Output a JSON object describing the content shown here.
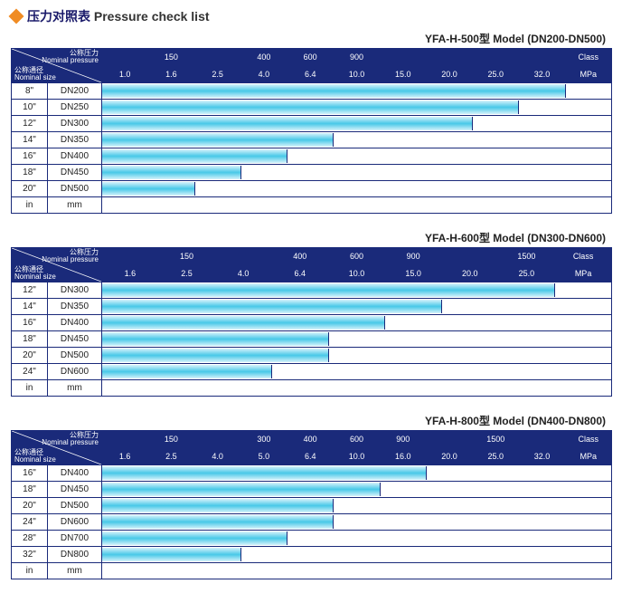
{
  "title_cn": "压力对照表",
  "title_en": "Pressure check list",
  "colors": {
    "header_bg": "#1a2a7a",
    "header_text": "#ffffff",
    "border": "#1a2a7a",
    "bar_gradient": [
      "#d6f3fb",
      "#48c8e8",
      "#d6f3fb"
    ],
    "diamond": "#f08c23",
    "title_text": "#1a1a6a"
  },
  "col1_width": 40,
  "col2_width": 60,
  "diag_labels": {
    "top_cn": "公称压力",
    "top_en": "Nominal pressure",
    "side_cn": "公称通径",
    "side_en": "Nominal size"
  },
  "side_units": {
    "in_label": "in",
    "mm_label": "mm"
  },
  "right_labels": {
    "class": "Class",
    "mpa": "MPa"
  },
  "tables": [
    {
      "model": "YFA-H-500型  Model (DN200-DN500)",
      "n_value_cols": 11,
      "class_row": [
        "",
        "150",
        "",
        "400",
        "600",
        "900",
        "",
        "",
        "",
        "",
        ""
      ],
      "mpa_row": [
        "1.0",
        "1.6",
        "2.5",
        "4.0",
        "6.4",
        "10.0",
        "15.0",
        "20.0",
        "25.0",
        "32.0",
        ""
      ],
      "rows": [
        {
          "in": "8\"",
          "mm": "DN200",
          "bar_cols": 10
        },
        {
          "in": "10\"",
          "mm": "DN250",
          "bar_cols": 9
        },
        {
          "in": "12\"",
          "mm": "DN300",
          "bar_cols": 8
        },
        {
          "in": "14\"",
          "mm": "DN350",
          "bar_cols": 5
        },
        {
          "in": "16\"",
          "mm": "DN400",
          "bar_cols": 4
        },
        {
          "in": "18\"",
          "mm": "DN450",
          "bar_cols": 3
        },
        {
          "in": "20\"",
          "mm": "DN500",
          "bar_cols": 2
        }
      ]
    },
    {
      "model": "YFA-H-600型  Model (DN300-DN600)",
      "n_value_cols": 9,
      "class_row": [
        "",
        "150",
        "",
        "400",
        "600",
        "900",
        "",
        "1500",
        ""
      ],
      "mpa_row": [
        "1.6",
        "2.5",
        "4.0",
        "6.4",
        "10.0",
        "15.0",
        "20.0",
        "25.0",
        ""
      ],
      "rows": [
        {
          "in": "12\"",
          "mm": "DN300",
          "bar_cols": 8
        },
        {
          "in": "14\"",
          "mm": "DN350",
          "bar_cols": 6
        },
        {
          "in": "16\"",
          "mm": "DN400",
          "bar_cols": 5
        },
        {
          "in": "18\"",
          "mm": "DN450",
          "bar_cols": 4
        },
        {
          "in": "20\"",
          "mm": "DN500",
          "bar_cols": 4
        },
        {
          "in": "24\"",
          "mm": "DN600",
          "bar_cols": 3
        }
      ]
    },
    {
      "model": "YFA-H-800型  Model (DN400-DN800)",
      "n_value_cols": 11,
      "class_row": [
        "",
        "150",
        "",
        "300",
        "400",
        "600",
        "900",
        "",
        "1500",
        "",
        ""
      ],
      "mpa_row": [
        "1.6",
        "2.5",
        "4.0",
        "5.0",
        "6.4",
        "10.0",
        "16.0",
        "20.0",
        "25.0",
        "32.0",
        ""
      ],
      "rows": [
        {
          "in": "16\"",
          "mm": "DN400",
          "bar_cols": 7
        },
        {
          "in": "18\"",
          "mm": "DN450",
          "bar_cols": 6
        },
        {
          "in": "20\"",
          "mm": "DN500",
          "bar_cols": 5
        },
        {
          "in": "24\"",
          "mm": "DN600",
          "bar_cols": 5
        },
        {
          "in": "28\"",
          "mm": "DN700",
          "bar_cols": 4
        },
        {
          "in": "32\"",
          "mm": "DN800",
          "bar_cols": 3
        }
      ]
    }
  ]
}
